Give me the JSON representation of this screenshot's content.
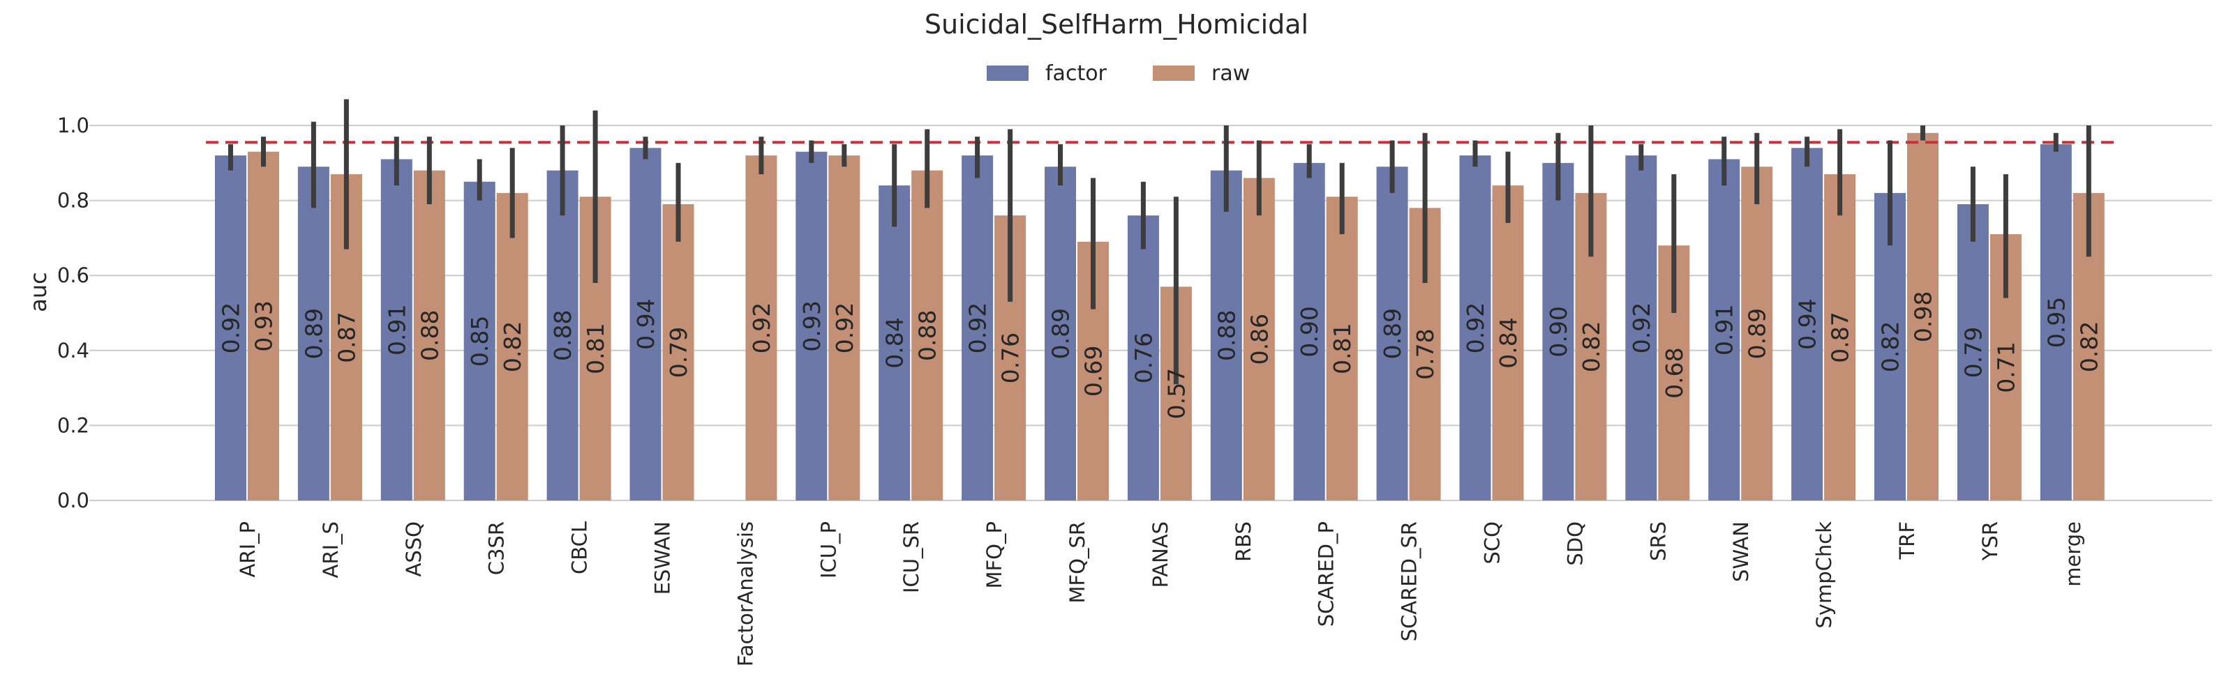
{
  "chart_data": {
    "type": "bar",
    "title": "Suicidal_SelfHarm_Homicidal",
    "ylabel": "auc",
    "xlabel": "",
    "ylim": [
      0,
      1.1
    ],
    "yticks": [
      "0.0",
      "0.2",
      "0.4",
      "0.6",
      "0.8",
      "1.0"
    ],
    "grid": "horizontal",
    "legend_position": "top-center",
    "reference_line": {
      "value": 0.955,
      "style": "dashed",
      "color": "#c8323c"
    },
    "colors": {
      "factor": "#6b78a8",
      "raw": "#c38f75",
      "errorbar": "#3d3d3d"
    },
    "categories": [
      "ARI_P",
      "ARI_S",
      "ASSQ",
      "C3SR",
      "CBCL",
      "ESWAN",
      "FactorAnalysis",
      "ICU_P",
      "ICU_SR",
      "MFQ_P",
      "MFQ_SR",
      "PANAS",
      "RBS",
      "SCARED_P",
      "SCARED_SR",
      "SCQ",
      "SDQ",
      "SRS",
      "SWAN",
      "SympChck",
      "TRF",
      "YSR",
      "merge"
    ],
    "series": [
      {
        "name": "factor",
        "values": [
          0.92,
          0.89,
          0.91,
          0.85,
          0.88,
          0.94,
          null,
          0.93,
          0.84,
          0.92,
          0.89,
          0.76,
          0.88,
          0.9,
          0.89,
          0.92,
          0.9,
          0.92,
          0.91,
          0.94,
          0.82,
          0.79,
          0.95
        ],
        "labels": [
          "0.92",
          "0.89",
          "0.91",
          "0.85",
          "0.88",
          "0.94",
          "",
          "0.93",
          "0.84",
          "0.92",
          "0.89",
          "0.76",
          "0.88",
          "0.90",
          "0.89",
          "0.92",
          "0.90",
          "0.92",
          "0.91",
          "0.94",
          "0.82",
          "0.79",
          "0.95"
        ],
        "err_low": [
          0.88,
          0.78,
          0.84,
          0.8,
          0.76,
          0.91,
          null,
          0.9,
          0.73,
          0.86,
          0.84,
          0.67,
          0.77,
          0.86,
          0.82,
          0.89,
          0.8,
          0.88,
          0.84,
          0.89,
          0.68,
          0.69,
          0.93
        ],
        "err_high": [
          0.95,
          1.01,
          0.97,
          0.91,
          1.0,
          0.97,
          null,
          0.96,
          0.95,
          0.97,
          0.95,
          0.85,
          1.0,
          0.95,
          0.96,
          0.96,
          0.98,
          0.95,
          0.97,
          0.97,
          0.96,
          0.89,
          0.98
        ]
      },
      {
        "name": "raw",
        "values": [
          0.93,
          0.87,
          0.88,
          0.82,
          0.81,
          0.79,
          0.92,
          0.92,
          0.88,
          0.76,
          0.69,
          0.57,
          0.86,
          0.81,
          0.78,
          0.84,
          0.82,
          0.68,
          0.89,
          0.87,
          0.98,
          0.71,
          0.82
        ],
        "labels": [
          "0.93",
          "0.87",
          "0.88",
          "0.82",
          "0.81",
          "0.79",
          "0.92",
          "0.92",
          "0.88",
          "0.76",
          "0.69",
          "0.57",
          "0.86",
          "0.81",
          "0.78",
          "0.84",
          "0.82",
          "0.68",
          "0.89",
          "0.87",
          "0.98",
          "0.71",
          "0.82"
        ],
        "err_low": [
          0.89,
          0.67,
          0.79,
          0.7,
          0.58,
          0.69,
          0.87,
          0.89,
          0.78,
          0.53,
          0.51,
          0.31,
          0.76,
          0.71,
          0.58,
          0.74,
          0.65,
          0.5,
          0.79,
          0.76,
          0.96,
          0.54,
          0.65
        ],
        "err_high": [
          0.97,
          1.07,
          0.97,
          0.94,
          1.04,
          0.9,
          0.97,
          0.95,
          0.99,
          0.99,
          0.86,
          0.81,
          0.96,
          0.9,
          0.98,
          0.93,
          1.0,
          0.87,
          0.98,
          0.99,
          1.0,
          0.87,
          1.0
        ]
      }
    ]
  }
}
